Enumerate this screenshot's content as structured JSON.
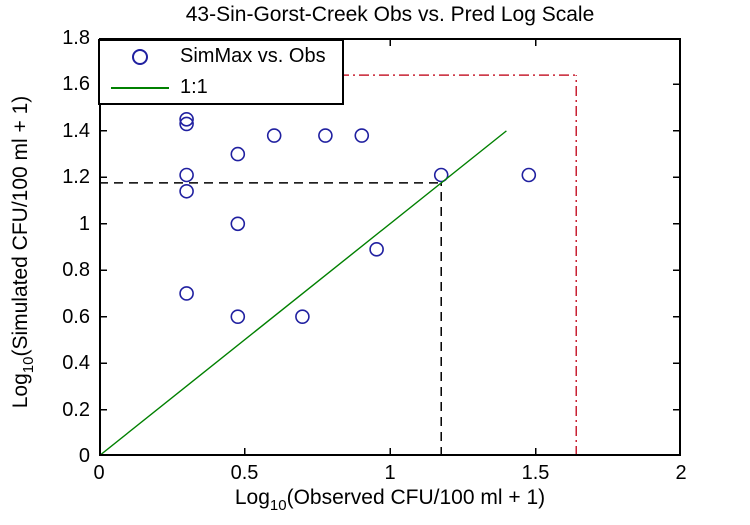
{
  "chart_data": {
    "type": "scatter",
    "title": "43-Sin-Gorst-Creek Obs vs. Pred Log Scale",
    "x_axis": {
      "label_prefix": "Log",
      "label_sub": "10",
      "label_rest": "(Observed CFU/100 ml + 1)",
      "lim": [
        0,
        2
      ],
      "tick_values": [
        0,
        0.5,
        1,
        1.5,
        2
      ],
      "tick_labels": [
        "0",
        "0.5",
        "1",
        "1.5",
        "2"
      ]
    },
    "y_axis": {
      "label_prefix": "Log",
      "label_sub": "10",
      "label_rest": "(Simulated CFU/100 ml + 1)",
      "lim": [
        0,
        1.8
      ],
      "tick_values": [
        0,
        0.2,
        0.4,
        0.6,
        0.8,
        1,
        1.2,
        1.4,
        1.6,
        1.8
      ],
      "tick_labels": [
        "0",
        "0.2",
        "0.4",
        "0.6",
        "0.8",
        "1",
        "1.2",
        "1.4",
        "1.6",
        "1.8"
      ]
    },
    "grid": false,
    "legend_position": "top-left",
    "series": [
      {
        "name": "SimMax vs. Obs",
        "type": "scatter",
        "marker": "circle",
        "color": "#2020a0",
        "points": [
          [
            0.301,
            1.45
          ],
          [
            0.301,
            1.43
          ],
          [
            0.301,
            1.21
          ],
          [
            0.301,
            1.14
          ],
          [
            0.301,
            0.7
          ],
          [
            0.477,
            1.3
          ],
          [
            0.477,
            1.0
          ],
          [
            0.477,
            0.6
          ],
          [
            0.602,
            1.38
          ],
          [
            0.778,
            1.38
          ],
          [
            0.903,
            1.38
          ],
          [
            0.699,
            0.6
          ],
          [
            0.954,
            0.89
          ],
          [
            1.176,
            1.21
          ],
          [
            1.477,
            1.21
          ]
        ]
      },
      {
        "name": "1:1",
        "type": "line",
        "color": "#008000",
        "points": [
          [
            0,
            0
          ],
          [
            1.4,
            1.4
          ]
        ]
      }
    ],
    "annotations": [
      {
        "name": "obs-threshold-horizontal",
        "x1": 0,
        "y1": 1.176,
        "x2": 1.176,
        "y2": 1.176,
        "color": "#000000",
        "style": "dashed"
      },
      {
        "name": "obs-threshold-vertical",
        "x1": 1.176,
        "y1": 0,
        "x2": 1.176,
        "y2": 1.176,
        "color": "#000000",
        "style": "dashed"
      },
      {
        "name": "limit-horizontal",
        "x1": 0,
        "y1": 1.64,
        "x2": 1.64,
        "y2": 1.64,
        "color": "#c82032",
        "style": "dashdot"
      },
      {
        "name": "limit-vertical",
        "x1": 1.64,
        "y1": 0,
        "x2": 1.64,
        "y2": 1.64,
        "color": "#c82032",
        "style": "dashdot"
      }
    ],
    "frame_color": "#000000",
    "background": "#ffffff"
  }
}
